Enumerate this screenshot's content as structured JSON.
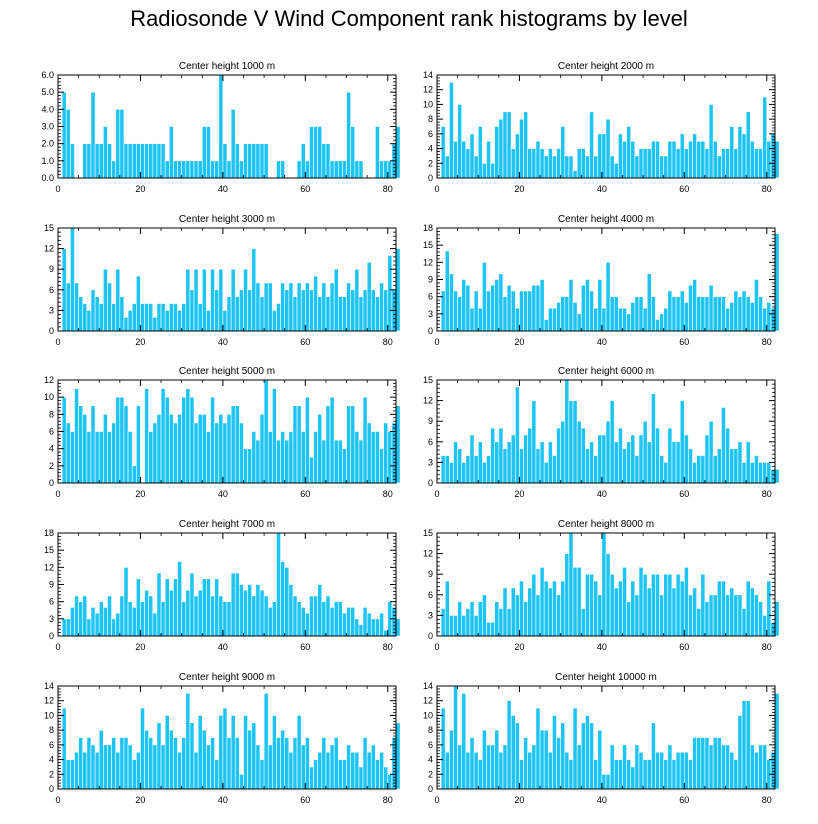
{
  "figure_title": "Radiosonde V Wind Component rank histograms by level",
  "colors": {
    "bar": "#1EC4F4",
    "bar_edge": "#ffffff",
    "axis": "#000000",
    "background": "#ffffff"
  },
  "chart_data": [
    {
      "type": "bar",
      "title": "Center height 1000 m",
      "xlim": [
        0,
        82
      ],
      "ylim": [
        0,
        6
      ],
      "xticks": [
        "0",
        "20",
        "40",
        "60",
        "80"
      ],
      "yticks": [
        "0.0",
        "1.0",
        "2.0",
        "3.0",
        "4.0",
        "5.0",
        "6.0"
      ],
      "values": [
        0,
        5,
        4,
        2,
        0,
        0,
        2,
        2,
        5,
        2,
        2,
        3,
        2,
        1,
        4,
        4,
        2,
        2,
        2,
        2,
        2,
        2,
        2,
        2,
        2,
        2,
        1,
        3,
        1,
        1,
        1,
        1,
        1,
        1,
        1,
        3,
        3,
        1,
        1,
        6,
        2,
        1,
        4,
        2,
        1,
        2,
        2,
        2,
        2,
        2,
        2,
        0,
        0,
        1,
        1,
        0,
        0,
        0,
        1,
        2,
        1,
        3,
        3,
        3,
        2,
        2,
        1,
        1,
        1,
        1,
        5,
        3,
        1,
        1,
        0,
        0,
        0,
        3,
        1,
        1,
        1,
        2,
        3
      ]
    },
    {
      "type": "bar",
      "title": "Center height 2000 m",
      "xlim": [
        0,
        82
      ],
      "ylim": [
        0,
        14
      ],
      "xticks": [
        "0",
        "20",
        "40",
        "60",
        "80"
      ],
      "yticks": [
        "0",
        "2",
        "4",
        "6",
        "8",
        "10",
        "12",
        "14"
      ],
      "values": [
        0,
        7,
        3,
        13,
        5,
        10,
        5,
        4,
        6,
        3,
        7,
        2,
        5,
        2,
        7,
        8,
        9,
        9,
        4,
        6,
        8,
        9,
        4,
        4,
        5,
        4,
        3,
        4,
        3,
        4,
        7,
        3,
        3,
        1,
        4,
        4,
        3,
        9,
        3,
        6,
        6,
        8,
        3,
        2,
        6,
        5,
        7,
        5,
        3,
        4,
        4,
        4,
        5,
        5,
        3,
        3,
        5,
        5,
        4,
        6,
        4,
        5,
        6,
        5,
        5,
        4,
        10,
        5,
        3,
        4,
        4,
        7,
        4,
        7,
        6,
        9,
        5,
        4,
        4,
        11,
        5,
        6,
        5
      ]
    },
    {
      "type": "bar",
      "title": "Center height 3000 m",
      "xlim": [
        0,
        82
      ],
      "ylim": [
        0,
        15
      ],
      "xticks": [
        "0",
        "20",
        "40",
        "60",
        "80"
      ],
      "yticks": [
        "0",
        "3",
        "6",
        "9",
        "12",
        "15"
      ],
      "values": [
        0,
        12,
        7,
        15,
        7,
        5,
        4,
        3,
        6,
        5,
        4,
        9,
        7,
        4,
        9,
        5,
        2,
        3,
        4,
        8,
        4,
        4,
        4,
        2,
        4,
        4,
        3,
        4,
        4,
        3,
        4,
        9,
        6,
        9,
        4,
        9,
        3,
        9,
        6,
        9,
        3,
        5,
        9,
        5,
        6,
        9,
        6,
        12,
        7,
        5,
        7,
        7,
        3,
        4,
        7,
        6,
        7,
        5,
        7,
        6,
        7,
        6,
        8,
        5,
        7,
        5,
        7,
        9,
        5,
        5,
        7,
        6,
        9,
        5,
        6,
        10,
        6,
        5,
        7,
        6,
        11,
        6,
        12
      ]
    },
    {
      "type": "bar",
      "title": "Center height 4000 m",
      "xlim": [
        0,
        82
      ],
      "ylim": [
        0,
        18
      ],
      "xticks": [
        "0",
        "20",
        "40",
        "60",
        "80"
      ],
      "yticks": [
        "0",
        "3",
        "6",
        "9",
        "12",
        "15",
        "18"
      ],
      "values": [
        0,
        7,
        14,
        10,
        7,
        6,
        9,
        8,
        4,
        7,
        4,
        12,
        7,
        8,
        9,
        10,
        6,
        8,
        7,
        4,
        7,
        7,
        7,
        8,
        8,
        9,
        2,
        4,
        4,
        5,
        6,
        6,
        9,
        5,
        3,
        8,
        9,
        7,
        4,
        9,
        4,
        12,
        6,
        6,
        4,
        4,
        3,
        5,
        6,
        6,
        4,
        10,
        6,
        2,
        3,
        4,
        7,
        6,
        6,
        7,
        5,
        8,
        9,
        6,
        6,
        6,
        8,
        6,
        6,
        6,
        4,
        5,
        7,
        6,
        7,
        6,
        5,
        9,
        6,
        4,
        5,
        4,
        17
      ]
    },
    {
      "type": "bar",
      "title": "Center height 5000 m",
      "xlim": [
        0,
        82
      ],
      "ylim": [
        0,
        12
      ],
      "xticks": [
        "0",
        "20",
        "40",
        "60",
        "80"
      ],
      "yticks": [
        "0",
        "2",
        "4",
        "6",
        "8",
        "10",
        "12"
      ],
      "values": [
        0,
        10,
        7,
        6,
        11,
        9,
        8,
        6,
        9,
        6,
        6,
        8,
        6,
        7,
        10,
        10,
        9,
        6,
        2,
        9,
        0,
        11,
        6,
        7,
        8,
        11,
        10,
        8,
        7,
        8,
        10,
        11,
        10,
        7,
        8,
        8,
        6,
        10,
        7,
        8,
        7,
        8,
        9,
        9,
        7,
        4,
        4,
        6,
        5,
        8,
        12,
        6,
        11,
        5,
        6,
        5,
        6,
        9,
        9,
        6,
        10,
        3,
        6,
        8,
        5,
        9,
        10,
        5,
        5,
        4,
        9,
        9,
        6,
        5,
        10,
        7,
        6,
        6,
        4,
        7,
        6,
        7,
        9
      ]
    },
    {
      "type": "bar",
      "title": "Center height 6000 m",
      "xlim": [
        0,
        82
      ],
      "ylim": [
        0,
        15
      ],
      "xticks": [
        "0",
        "20",
        "40",
        "60",
        "80"
      ],
      "yticks": [
        "0",
        "3",
        "6",
        "9",
        "12",
        "15"
      ],
      "values": [
        0,
        4,
        4,
        3,
        6,
        5,
        3,
        4,
        7,
        4,
        6,
        3,
        4,
        8,
        6,
        8,
        5,
        6,
        7,
        14,
        5,
        7,
        8,
        12,
        5,
        6,
        3,
        6,
        4,
        8,
        9,
        15,
        12,
        12,
        9,
        8,
        5,
        6,
        4,
        7,
        7,
        9,
        12,
        6,
        8,
        5,
        6,
        7,
        4,
        7,
        9,
        6,
        13,
        8,
        4,
        3,
        8,
        6,
        6,
        12,
        7,
        5,
        3,
        4,
        4,
        7,
        9,
        4,
        5,
        11,
        8,
        5,
        5,
        6,
        3,
        6,
        3,
        4,
        3,
        3,
        3,
        2,
        2
      ]
    },
    {
      "type": "bar",
      "title": "Center height 7000 m",
      "xlim": [
        0,
        82
      ],
      "ylim": [
        0,
        18
      ],
      "xticks": [
        "0",
        "20",
        "40",
        "60",
        "80"
      ],
      "yticks": [
        "0",
        "3",
        "6",
        "9",
        "12",
        "15",
        "18"
      ],
      "values": [
        0,
        3,
        3,
        5,
        7,
        6,
        7,
        3,
        5,
        4,
        6,
        5,
        7,
        3,
        4,
        7,
        12,
        6,
        5,
        10,
        6,
        8,
        7,
        4,
        11,
        6,
        10,
        8,
        10,
        13,
        6,
        8,
        11,
        7,
        8,
        10,
        10,
        7,
        10,
        7,
        6,
        6,
        11,
        11,
        9,
        8,
        9,
        7,
        9,
        8,
        7,
        5,
        6,
        18,
        13,
        12,
        9,
        7,
        6,
        5,
        4,
        7,
        7,
        9,
        6,
        7,
        5,
        6,
        6,
        4,
        5,
        5,
        3,
        2,
        5,
        4,
        3,
        3,
        4,
        1,
        6,
        5,
        3
      ]
    },
    {
      "type": "bar",
      "title": "Center height 8000 m",
      "xlim": [
        0,
        82
      ],
      "ylim": [
        0,
        15
      ],
      "xticks": [
        "0",
        "20",
        "40",
        "60",
        "80"
      ],
      "yticks": [
        "0",
        "3",
        "6",
        "9",
        "12",
        "15"
      ],
      "values": [
        0,
        4,
        8,
        3,
        3,
        5,
        3,
        4,
        5,
        3,
        5,
        6,
        2,
        2,
        5,
        4,
        7,
        4,
        7,
        6,
        8,
        5,
        7,
        9,
        6,
        10,
        8,
        7,
        8,
        6,
        8,
        12,
        15,
        10,
        10,
        4,
        9,
        9,
        8,
        6,
        15,
        12,
        9,
        7,
        8,
        10,
        5,
        8,
        6,
        10,
        9,
        7,
        9,
        9,
        6,
        9,
        9,
        7,
        9,
        8,
        10,
        6,
        7,
        4,
        9,
        5,
        6,
        6,
        8,
        8,
        6,
        7,
        6,
        6,
        4,
        8,
        7,
        6,
        5,
        3,
        8,
        2,
        5
      ]
    },
    {
      "type": "bar",
      "title": "Center height 9000 m",
      "xlim": [
        0,
        82
      ],
      "ylim": [
        0,
        14
      ],
      "xticks": [
        "0",
        "20",
        "40",
        "60",
        "80"
      ],
      "yticks": [
        "0",
        "2",
        "4",
        "6",
        "8",
        "10",
        "12",
        "14"
      ],
      "values": [
        0,
        11,
        4,
        4,
        5,
        7,
        5,
        7,
        6,
        5,
        8,
        6,
        6,
        7,
        5,
        7,
        7,
        6,
        4,
        5,
        11,
        8,
        7,
        6,
        9,
        6,
        10,
        8,
        7,
        5,
        7,
        13,
        9,
        5,
        10,
        8,
        6,
        7,
        4,
        10,
        11,
        7,
        10,
        7,
        2,
        10,
        8,
        9,
        6,
        4,
        13,
        6,
        10,
        7,
        8,
        7,
        5,
        7,
        10,
        6,
        7,
        3,
        4,
        5,
        7,
        5,
        6,
        7,
        4,
        4,
        6,
        5,
        5,
        3,
        7,
        5,
        6,
        4,
        5,
        3,
        2,
        7,
        9
      ]
    },
    {
      "type": "bar",
      "title": "Center height 10000 m",
      "xlim": [
        0,
        82
      ],
      "ylim": [
        0,
        14
      ],
      "xticks": [
        "0",
        "20",
        "40",
        "60",
        "80"
      ],
      "yticks": [
        "0",
        "2",
        "4",
        "6",
        "8",
        "10",
        "12",
        "14"
      ],
      "values": [
        0,
        11,
        5,
        8,
        14,
        6,
        13,
        5,
        7,
        5,
        4,
        8,
        6,
        6,
        8,
        5,
        6,
        12,
        10,
        9,
        4,
        7,
        5,
        6,
        11,
        8,
        8,
        5,
        10,
        7,
        9,
        5,
        4,
        11,
        6,
        9,
        10,
        9,
        4,
        8,
        2,
        2,
        6,
        4,
        4,
        6,
        4,
        3,
        6,
        5,
        4,
        4,
        9,
        5,
        5,
        4,
        6,
        4,
        5,
        5,
        5,
        4,
        7,
        7,
        7,
        7,
        6,
        7,
        7,
        6,
        6,
        5,
        4,
        10,
        12,
        12,
        6,
        5,
        6,
        6,
        4,
        5,
        13
      ]
    }
  ]
}
